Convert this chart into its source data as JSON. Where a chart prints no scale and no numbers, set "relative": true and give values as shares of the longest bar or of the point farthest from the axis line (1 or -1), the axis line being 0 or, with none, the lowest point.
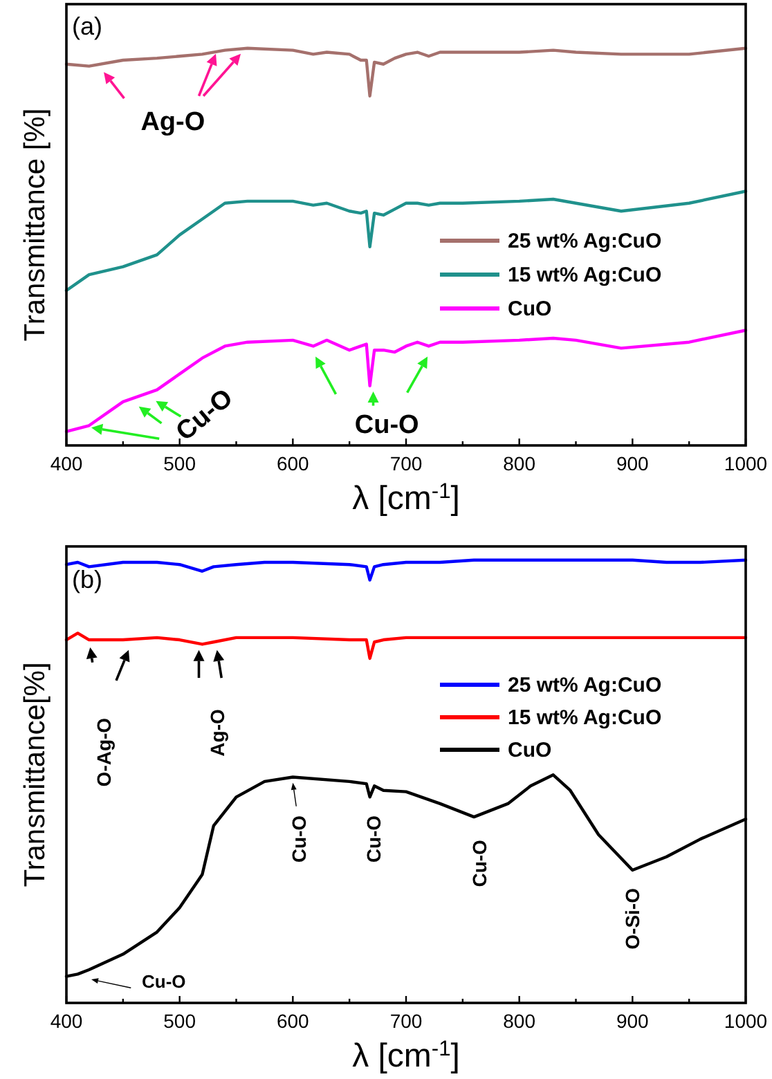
{
  "chart_data": [
    {
      "type": "line",
      "relative": true,
      "xlabel": "λ [cm$^{-1}$]",
      "ylabel": "Transmittance [%]",
      "legend": "right",
      "xlim": [
        400,
        1000
      ],
      "xticks": [
        400,
        {
          "value": 450,
          "label": null
        },
        500,
        {
          "value": 550,
          "label": null
        },
        600,
        {
          "value": 650,
          "label": null
        },
        700,
        {
          "value": 750,
          "label": null
        },
        800,
        {
          "value": 850,
          "label": null
        },
        900,
        {
          "value": 950,
          "label": null
        },
        1000
      ],
      "x": [
        400,
        420,
        450,
        480,
        500,
        520,
        540,
        560,
        600,
        618,
        630,
        650,
        660,
        665,
        668,
        672,
        680,
        690,
        700,
        710,
        720,
        730,
        750,
        800,
        830,
        850,
        890,
        950,
        1000
      ],
      "series": [
        {
          "name": "25 wt% Ag:CuO",
          "color": "#a5706c",
          "values": [
            0.96,
            0.955,
            0.97,
            0.975,
            0.98,
            0.985,
            0.995,
            1.0,
            0.995,
            0.985,
            0.99,
            0.985,
            0.97,
            0.97,
            0.88,
            0.965,
            0.96,
            0.975,
            0.985,
            0.99,
            0.98,
            0.99,
            0.99,
            0.99,
            0.995,
            0.99,
            0.985,
            0.985,
            1.0
          ]
        },
        {
          "name": "15 wt% Ag:CuO",
          "color": "#1f918c",
          "values": [
            0.39,
            0.43,
            0.45,
            0.48,
            0.53,
            0.57,
            0.61,
            0.615,
            0.615,
            0.605,
            0.61,
            0.59,
            0.585,
            0.59,
            0.5,
            0.585,
            0.58,
            0.595,
            0.61,
            0.61,
            0.605,
            0.61,
            0.61,
            0.615,
            0.62,
            0.61,
            0.59,
            0.61,
            0.64
          ]
        },
        {
          "name": "CuO",
          "color": "#ff00ff",
          "values": [
            0.035,
            0.05,
            0.11,
            0.14,
            0.18,
            0.22,
            0.25,
            0.26,
            0.265,
            0.25,
            0.265,
            0.24,
            0.25,
            0.255,
            0.15,
            0.24,
            0.24,
            0.235,
            0.25,
            0.26,
            0.25,
            0.26,
            0.26,
            0.265,
            0.27,
            0.265,
            0.245,
            0.26,
            0.29
          ]
        }
      ],
      "annotations": [
        "(a)",
        "Ag-O",
        "Cu-O",
        "Cu-O"
      ]
    },
    {
      "type": "line",
      "relative": true,
      "xlabel": "λ [cm$^{-1}$]",
      "ylabel": "Transmittance[%]",
      "legend": "right",
      "xlim": [
        400,
        1000
      ],
      "xticks": [
        400,
        {
          "value": 450,
          "label": null
        },
        500,
        {
          "value": 550,
          "label": null
        },
        600,
        {
          "value": 650,
          "label": null
        },
        700,
        {
          "value": 750,
          "label": null
        },
        800,
        {
          "value": 850,
          "label": null
        },
        900,
        {
          "value": 950,
          "label": null
        },
        1000
      ],
      "x": [
        400,
        410,
        420,
        450,
        480,
        500,
        520,
        530,
        550,
        575,
        600,
        650,
        665,
        668,
        672,
        680,
        700,
        730,
        760,
        790,
        810,
        830,
        845,
        870,
        900,
        930,
        960,
        1000
      ],
      "series": [
        {
          "name": "25 wt% Ag:CuO",
          "color": "#0000ff",
          "values": [
            0.99,
            0.995,
            0.985,
            0.995,
            0.995,
            0.99,
            0.975,
            0.985,
            0.99,
            0.995,
            0.995,
            0.99,
            0.985,
            0.955,
            0.985,
            0.99,
            0.995,
            0.995,
            1.0,
            1.0,
            1.0,
            1.0,
            1.0,
            1.0,
            1.0,
            0.995,
            0.995,
            1.0
          ]
        },
        {
          "name": "15 wt% Ag:CuO",
          "color": "#ff0000",
          "values": [
            0.82,
            0.835,
            0.82,
            0.82,
            0.825,
            0.82,
            0.81,
            0.815,
            0.825,
            0.825,
            0.825,
            0.82,
            0.82,
            0.778,
            0.815,
            0.82,
            0.825,
            0.825,
            0.825,
            0.825,
            0.825,
            0.825,
            0.825,
            0.825,
            0.825,
            0.825,
            0.825,
            0.825
          ]
        },
        {
          "name": "CuO",
          "color": "#000000",
          "values": [
            0.06,
            0.065,
            0.075,
            0.11,
            0.16,
            0.215,
            0.29,
            0.4,
            0.465,
            0.5,
            0.51,
            0.5,
            0.495,
            0.465,
            0.49,
            0.48,
            0.477,
            0.45,
            0.42,
            0.45,
            0.49,
            0.515,
            0.48,
            0.38,
            0.3,
            0.33,
            0.37,
            0.415
          ]
        }
      ],
      "annotations": [
        "(b)",
        "O-Ag-O",
        "Ag-O",
        "Cu-O",
        "Cu-O",
        "Cu-O",
        "O-Si-O",
        "Cu-O"
      ]
    }
  ]
}
